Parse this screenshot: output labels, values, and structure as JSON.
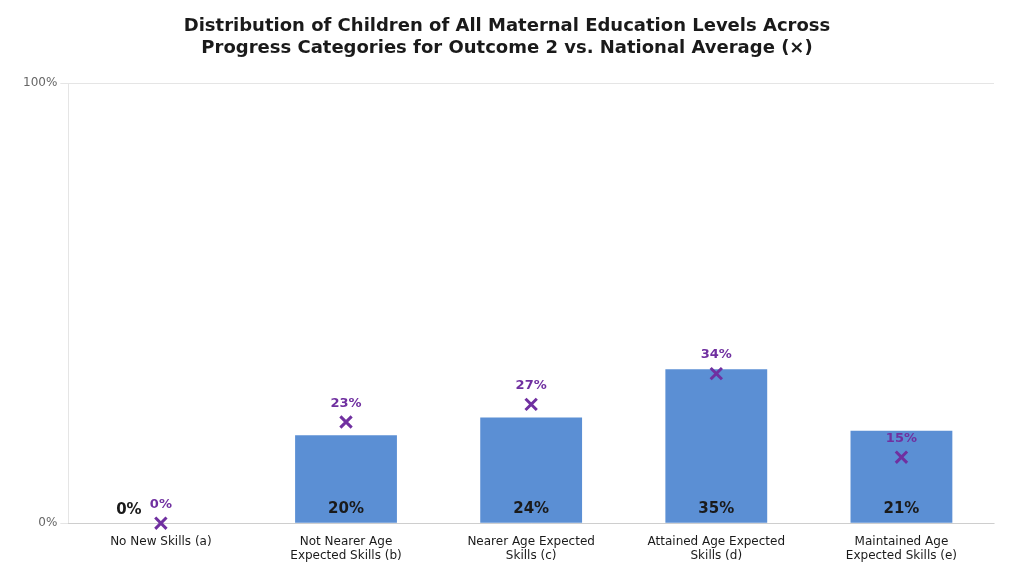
{
  "chart_data": {
    "type": "bar",
    "title": [
      "Distribution of Children of All Maternal Education Levels Across",
      "Progress Categories for Outcome 2 vs. National Average (×)"
    ],
    "categories": [
      "No New Skills (a)",
      "Not Nearer Age\nExpected Skills (b)",
      "Nearer Age Expected\nSkills (c)",
      "Attained Age Expected\nSkills (d)",
      "Maintained Age\nExpected Skills (e)"
    ],
    "series": [
      {
        "name": "Children of All Maternal Education Levels",
        "type": "bar",
        "color": "#5B8FD4",
        "values": [
          0,
          20,
          24,
          35,
          21
        ],
        "value_labels": [
          "0%",
          "20%",
          "24%",
          "35%",
          "21%"
        ]
      },
      {
        "name": "National Average",
        "type": "scatter",
        "color": "#7030A0",
        "marker": "x",
        "line_style": "none",
        "values": [
          0,
          23,
          27,
          34,
          15
        ],
        "value_labels": [
          "0%",
          "23%",
          "27%",
          "34%",
          "15%"
        ]
      }
    ],
    "ylim": [
      0,
      100
    ],
    "yticks": [
      {
        "value": 0,
        "label": "0%"
      },
      {
        "value": 100,
        "label": "100%"
      }
    ],
    "grid": true,
    "data_labels": true
  }
}
